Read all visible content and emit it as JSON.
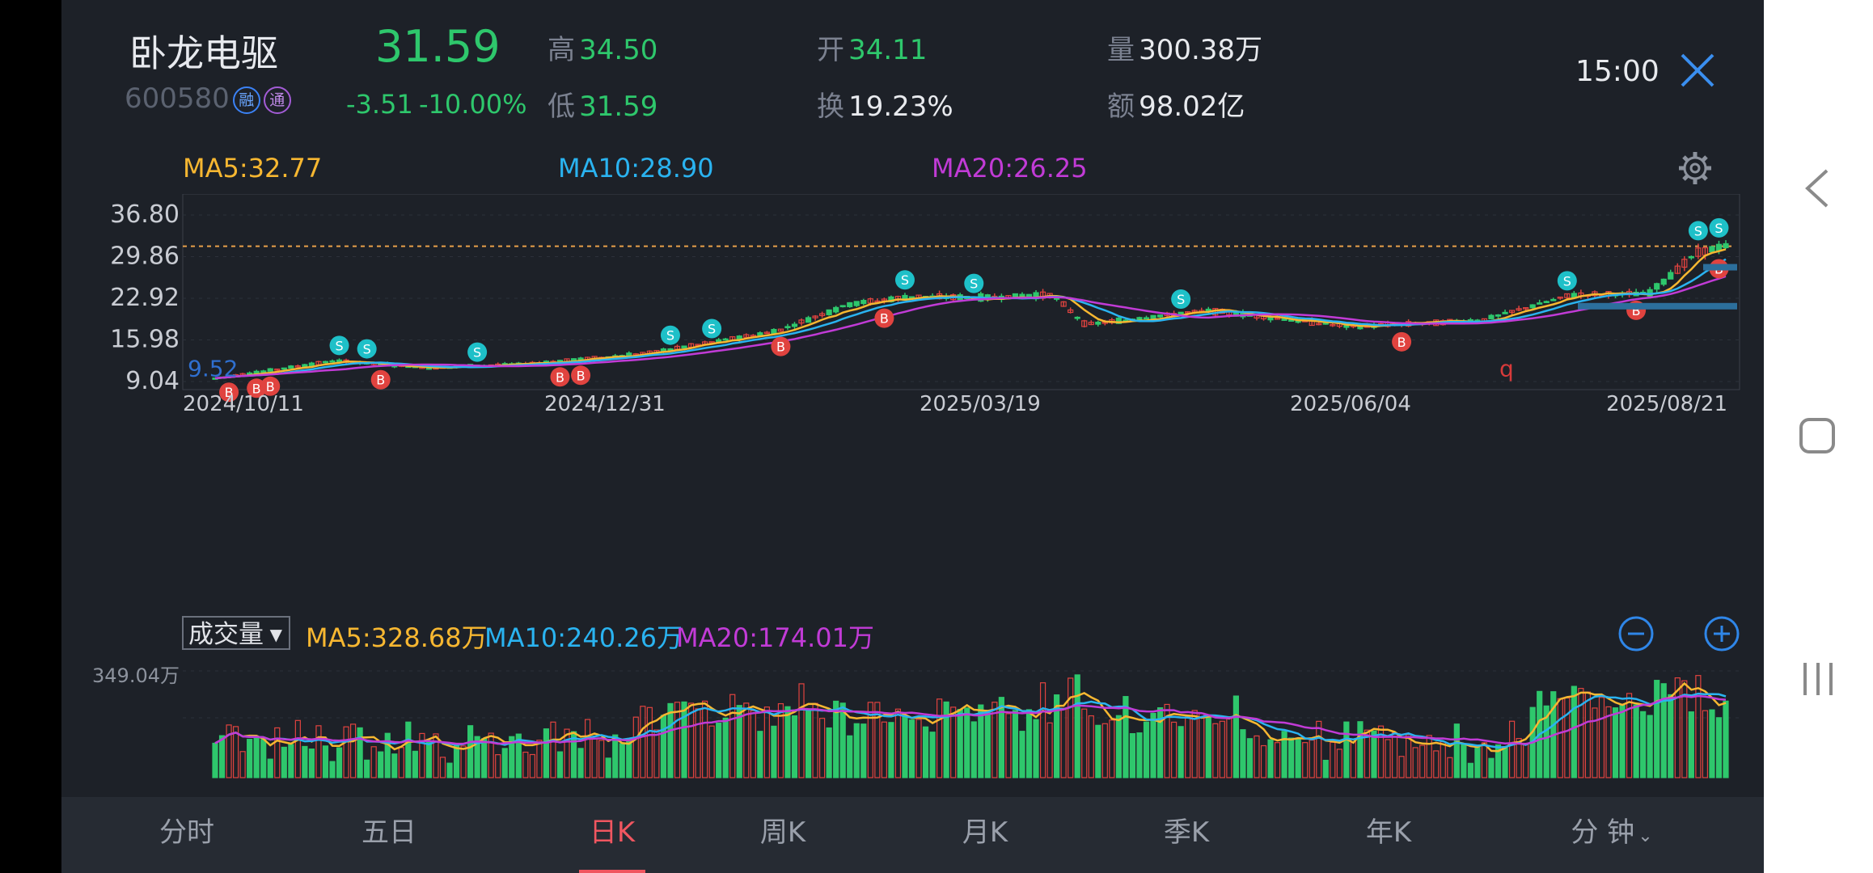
{
  "header": {
    "name": "卧龙电驱",
    "code": "600580",
    "badge_rong": "融",
    "badge_tong": "通",
    "price": "31.59",
    "change": "-3.51",
    "change_pct": "-10.00%",
    "high_label": "高",
    "high": "34.50",
    "low_label": "低",
    "low": "31.59",
    "open_label": "开",
    "open": "34.11",
    "turnover_label": "换",
    "turnover": "19.23%",
    "volume_label": "量",
    "volume": "300.38万",
    "amount_label": "额",
    "amount": "98.02亿",
    "time": "15:00"
  },
  "ma": {
    "ma5": "MA5:32.77",
    "ma10": "MA10:28.90",
    "ma20": "MA20:26.25",
    "colors": {
      "ma5": "#f7b731",
      "ma10": "#2ab3f0",
      "ma20": "#c13bd6"
    }
  },
  "kline": {
    "y_ticks": [
      "36.80",
      "29.86",
      "22.92",
      "15.98",
      "9.04"
    ],
    "x_ticks": [
      "2024/10/11",
      "2024/12/31",
      "2025/03/19",
      "2025/06/04",
      "2025/08/21"
    ],
    "low_marker": "9.52",
    "high_marker": "q",
    "buy_label": "B",
    "sell_label": "S"
  },
  "volume": {
    "selector": "成交量",
    "ma5": "MA5:328.68万",
    "ma10": "MA10:240.26万",
    "ma20": "MA20:174.01万",
    "y_max": "349.04万"
  },
  "tabs": [
    "分时",
    "五日",
    "日K",
    "周K",
    "月K",
    "季K",
    "年K",
    "分 钟"
  ],
  "active_tab": "日K",
  "chart_data": {
    "type": "candlestick",
    "title": "卧龙电驱 600580 日K",
    "xlabel": "",
    "ylabel": "",
    "ylim": [
      9.04,
      36.8
    ],
    "x_ticks": [
      "2024/10/11",
      "2024/12/31",
      "2025/03/19",
      "2025/06/04",
      "2025/08/21"
    ],
    "close_approx": [
      {
        "x": "2024/10/11",
        "y": 9.6
      },
      {
        "x": "2024/11/05",
        "y": 12.5
      },
      {
        "x": "2024/11/25",
        "y": 11.3
      },
      {
        "x": "2024/12/20",
        "y": 12.3
      },
      {
        "x": "2025/01/10",
        "y": 13.9
      },
      {
        "x": "2025/02/05",
        "y": 17.5
      },
      {
        "x": "2025/02/20",
        "y": 22.0
      },
      {
        "x": "2025/03/05",
        "y": 23.2
      },
      {
        "x": "2025/03/19",
        "y": 23.0
      },
      {
        "x": "2025/04/03",
        "y": 23.5
      },
      {
        "x": "2025/04/10",
        "y": 18.5
      },
      {
        "x": "2025/05/05",
        "y": 20.9
      },
      {
        "x": "2025/06/04",
        "y": 18.2
      },
      {
        "x": "2025/07/01",
        "y": 19.2
      },
      {
        "x": "2025/07/20",
        "y": 23.5
      },
      {
        "x": "2025/08/05",
        "y": 23.7
      },
      {
        "x": "2025/08/15",
        "y": 30.5
      },
      {
        "x": "2025/08/21",
        "y": 31.59
      }
    ],
    "moving_averages": {
      "MA5": 32.77,
      "MA10": 28.9,
      "MA20": 26.25
    },
    "current_price_line": 31.59
  }
}
